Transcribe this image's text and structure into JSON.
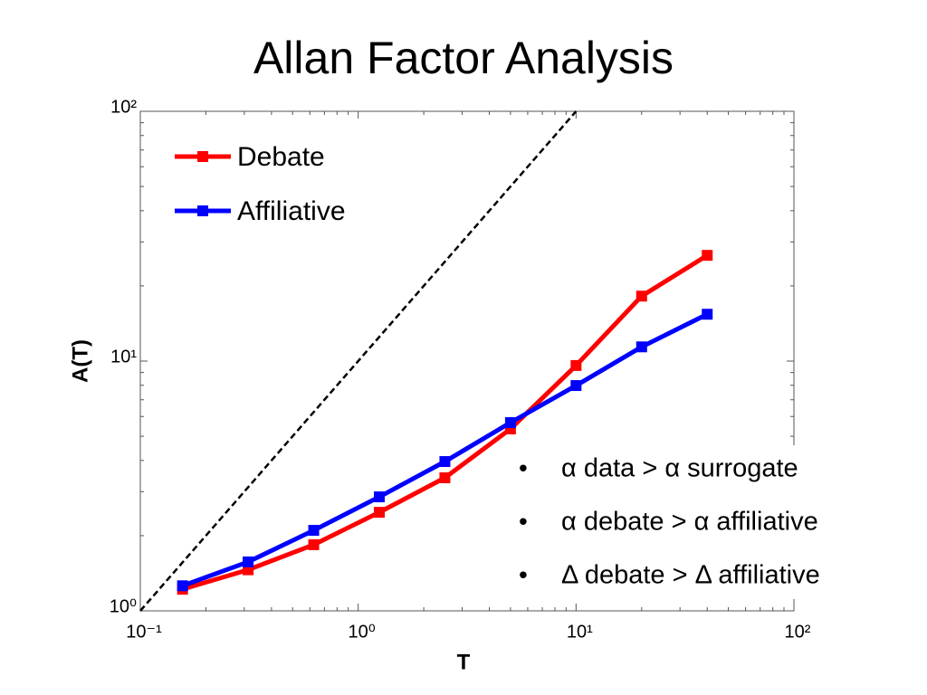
{
  "chart_data": {
    "type": "line",
    "title": "Allan Factor Analysis",
    "xlabel": "T",
    "ylabel": "A(T)",
    "xscale": "log",
    "yscale": "log",
    "xlim": [
      0.1,
      100
    ],
    "ylim": [
      1,
      100
    ],
    "xticks": [
      {
        "value": 0.1,
        "label": "10⁻¹"
      },
      {
        "value": 1,
        "label": "10⁰"
      },
      {
        "value": 10,
        "label": "10¹"
      },
      {
        "value": 100,
        "label": "10²"
      }
    ],
    "yticks": [
      {
        "value": 1,
        "label": "10⁰"
      },
      {
        "value": 10,
        "label": "10¹"
      },
      {
        "value": 100,
        "label": "10²"
      }
    ],
    "minor_ticks": true,
    "legend": "upper left",
    "x": [
      0.15625,
      0.3125,
      0.625,
      1.25,
      2.5,
      5,
      10,
      20,
      40
    ],
    "series": [
      {
        "name": "Debate",
        "color": "#ff0000",
        "values": [
          1.22,
          1.46,
          1.84,
          2.48,
          3.41,
          5.35,
          9.6,
          18.2,
          26.5
        ]
      },
      {
        "name": "Affiliative",
        "color": "#0000ff",
        "values": [
          1.26,
          1.57,
          2.1,
          2.86,
          3.96,
          5.67,
          7.98,
          11.4,
          15.4
        ]
      }
    ],
    "reference_line": {
      "x": [
        0.1,
        10
      ],
      "y": [
        1,
        100
      ],
      "color": "#000000"
    },
    "annotations": [
      "α data > α surrogate",
      "α debate > α affiliative",
      "Δ debate > Δ affiliative"
    ]
  }
}
